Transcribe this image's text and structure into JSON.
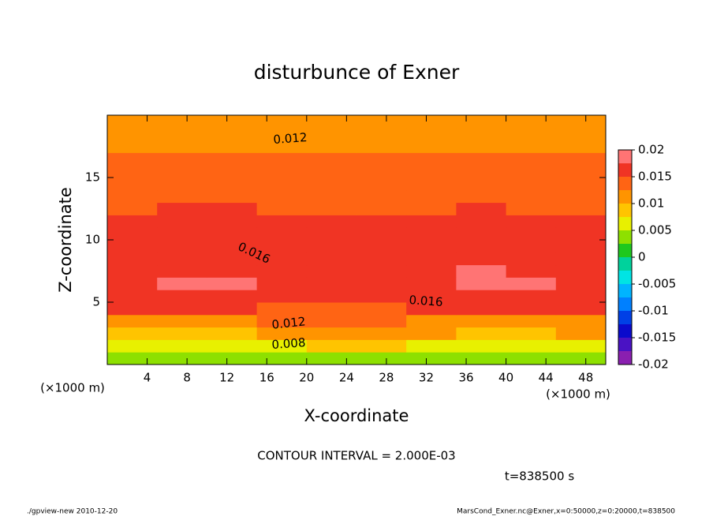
{
  "chart_data": {
    "type": "contour",
    "title": "disturbunce of Exner",
    "x_label": "X-coordinate",
    "y_label": "Z-coordinate",
    "x_unit_label": "(×1000 m)",
    "y_unit_label": "(×1000 m)",
    "xlim": [
      0,
      50
    ],
    "ylim": [
      0,
      20
    ],
    "xticks": [
      4,
      8,
      12,
      16,
      20,
      24,
      28,
      32,
      36,
      40,
      44,
      48
    ],
    "yticks": [
      5,
      10,
      15
    ],
    "x": [
      2.5,
      7.5,
      12.5,
      17.5,
      22.5,
      27.5,
      32.5,
      37.5,
      42.5,
      47.5
    ],
    "z": [
      0.5,
      1.5,
      2.5,
      3.5,
      4.5,
      5.5,
      6.5,
      7.5,
      8.5,
      9.5,
      10.5,
      11.5,
      12.5,
      13.5,
      14.5,
      15.5,
      16.5,
      17.5,
      18.5,
      19.5
    ],
    "values": [
      [
        0.003,
        0.0028,
        0.003,
        0.0035,
        0.0042,
        0.0038,
        0.0032,
        0.003,
        0.003,
        0.0032
      ],
      [
        0.0068,
        0.0066,
        0.0068,
        0.0074,
        0.008,
        0.0076,
        0.007,
        0.0068,
        0.0068,
        0.007
      ],
      [
        0.0098,
        0.0096,
        0.0098,
        0.0104,
        0.011,
        0.0106,
        0.01,
        0.0098,
        0.0098,
        0.01
      ],
      [
        0.0121,
        0.012,
        0.0121,
        0.0126,
        0.013,
        0.0127,
        0.0122,
        0.0121,
        0.0121,
        0.0122
      ],
      [
        0.015,
        0.0151,
        0.0151,
        0.0149,
        0.0148,
        0.0149,
        0.015,
        0.0151,
        0.0151,
        0.015
      ],
      [
        0.016,
        0.0164,
        0.0164,
        0.0158,
        0.0155,
        0.0157,
        0.0162,
        0.0165,
        0.0163,
        0.016
      ],
      [
        0.017,
        0.0178,
        0.0178,
        0.0166,
        0.0158,
        0.0161,
        0.0172,
        0.018,
        0.0176,
        0.0169
      ],
      [
        0.0167,
        0.0174,
        0.0174,
        0.0165,
        0.0158,
        0.0161,
        0.017,
        0.0175,
        0.0172,
        0.0166
      ],
      [
        0.0161,
        0.0165,
        0.0165,
        0.016,
        0.0156,
        0.0158,
        0.0163,
        0.0165,
        0.0164,
        0.0161
      ],
      [
        0.0157,
        0.016,
        0.016,
        0.0156,
        0.0154,
        0.0155,
        0.0158,
        0.016,
        0.0159,
        0.0157
      ],
      [
        0.0155,
        0.0157,
        0.0157,
        0.0154,
        0.0152,
        0.0153,
        0.0156,
        0.0158,
        0.0157,
        0.0155
      ],
      [
        0.0153,
        0.0155,
        0.0155,
        0.0152,
        0.015,
        0.0151,
        0.0154,
        0.0155,
        0.0154,
        0.0153
      ],
      [
        0.0148,
        0.0151,
        0.0151,
        0.0148,
        0.0146,
        0.0147,
        0.0149,
        0.015,
        0.0149,
        0.0148
      ],
      [
        0.0143,
        0.0145,
        0.0145,
        0.0143,
        0.0142,
        0.0142,
        0.0143,
        0.0144,
        0.0143,
        0.0143
      ],
      [
        0.0139,
        0.014,
        0.014,
        0.0139,
        0.0138,
        0.0138,
        0.0139,
        0.0139,
        0.0139,
        0.0139
      ],
      [
        0.0134,
        0.0135,
        0.0135,
        0.0134,
        0.0133,
        0.0133,
        0.0134,
        0.0134,
        0.0134,
        0.0134
      ],
      [
        0.0128,
        0.013,
        0.013,
        0.0128,
        0.0127,
        0.0127,
        0.0128,
        0.0128,
        0.0128,
        0.0128
      ],
      [
        0.0121,
        0.0123,
        0.0123,
        0.0122,
        0.012,
        0.012,
        0.0121,
        0.0121,
        0.0121,
        0.0121
      ],
      [
        0.0116,
        0.0117,
        0.0117,
        0.0116,
        0.0115,
        0.0115,
        0.0116,
        0.0116,
        0.0116,
        0.0116
      ],
      [
        0.0111,
        0.0112,
        0.0112,
        0.0111,
        0.011,
        0.011,
        0.0111,
        0.0111,
        0.0111,
        0.0111
      ]
    ],
    "levels": [
      -0.02,
      -0.0175,
      -0.015,
      -0.0125,
      -0.01,
      -0.0075,
      -0.005,
      -0.0025,
      0,
      0.0025,
      0.005,
      0.0075,
      0.01,
      0.0125,
      0.015,
      0.0175,
      0.02
    ],
    "level_colors": [
      "#8a1fb0",
      "#4a12c4",
      "#0a0acc",
      "#0040e6",
      "#0080ff",
      "#00b4ff",
      "#00e4e4",
      "#00d29c",
      "#1ec81e",
      "#8ee000",
      "#e8f000",
      "#ffc400",
      "#ff9400",
      "#ff6414",
      "#f03424",
      "#ff7474"
    ],
    "colorbar_ticks": [
      -0.02,
      -0.015,
      -0.01,
      -0.005,
      0,
      0.005,
      0.01,
      0.015,
      0.02
    ],
    "contour_labels": [
      0.012,
      0.016,
      0.016,
      0.012,
      0.008
    ],
    "contour_interval_text": "CONTOUR INTERVAL = 2.000E-03",
    "time_text": "t=838500 s",
    "footer_left": "./gpview-new   2010-12-20",
    "footer_right": "MarsCond_Exner.nc@Exner,x=0:50000,z=0:20000,t=838500"
  }
}
